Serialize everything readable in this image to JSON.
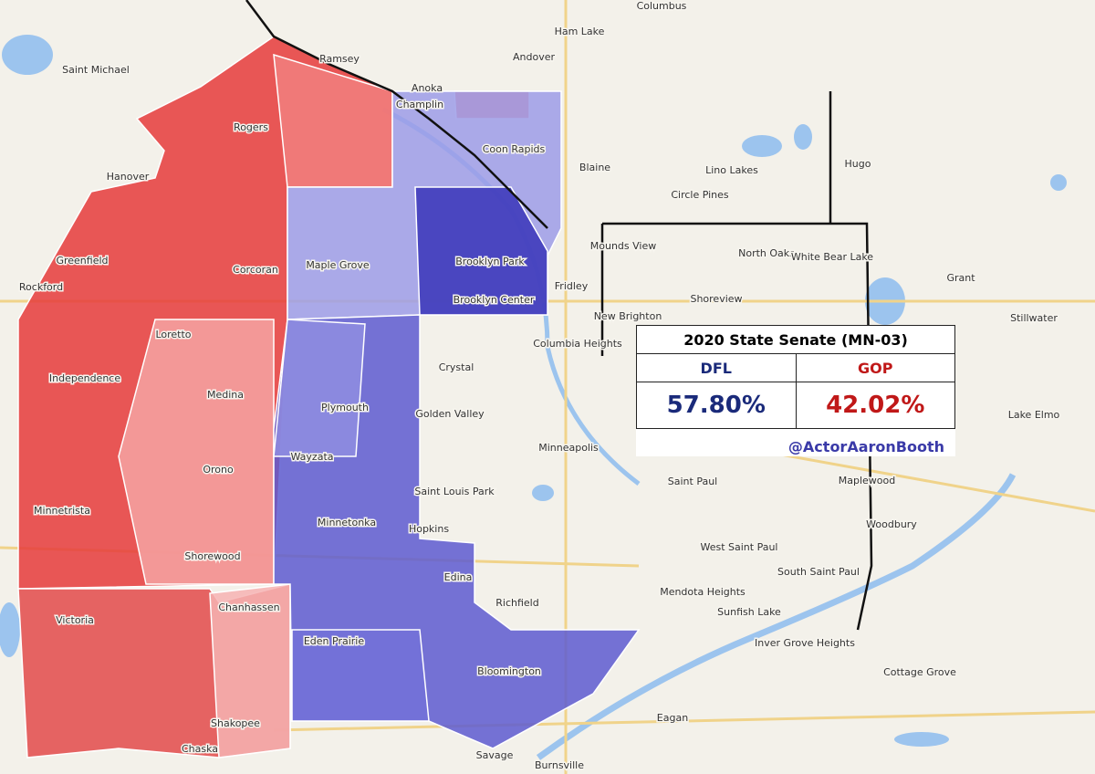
{
  "title": "2020 State Senate (MN-03)",
  "table": {
    "headers": [
      "DFL",
      "GOP"
    ],
    "values": [
      "57.80%",
      "42.02%"
    ]
  },
  "credit": "@ActorAaronBooth",
  "places": [
    "Columbus",
    "Ham Lake",
    "Andover",
    "Ramsey",
    "Saint Michael",
    "Anoka",
    "Champlin",
    "Rogers",
    "Coon Rapids",
    "Blaine",
    "Lino Lakes",
    "Hugo",
    "Hanover",
    "Circle Pines",
    "Mounds View",
    "North Oaks",
    "White Bear Lake",
    "Grant",
    "Greenfield",
    "Corcoran",
    "Maple Grove",
    "Brooklyn Park",
    "Rockford",
    "Fridley",
    "Brooklyn Center",
    "Shoreview",
    "Stillwater",
    "New Brighton",
    "Columbia Heights",
    "Loretto",
    "Independence",
    "Medina",
    "Crystal",
    "Plymouth",
    "Golden Valley",
    "Lake Elmo",
    "Minneapolis",
    "Orono",
    "Wayzata",
    "Maplewood",
    "Saint Paul",
    "Saint Louis Park",
    "Minnetrista",
    "Hopkins",
    "Woodbury",
    "Minnetonka",
    "West Saint Paul",
    "Shorewood",
    "Edina",
    "Mendota Heights",
    "South Saint Paul",
    "Richfield",
    "Victoria",
    "Chanhassen",
    "Sunfish Lake",
    "Eden Prairie",
    "Inver Grove Heights",
    "Bloomington",
    "Cottage Grove",
    "Eagan",
    "Shakopee",
    "Chaska",
    "Savage",
    "Burnsville"
  ]
}
